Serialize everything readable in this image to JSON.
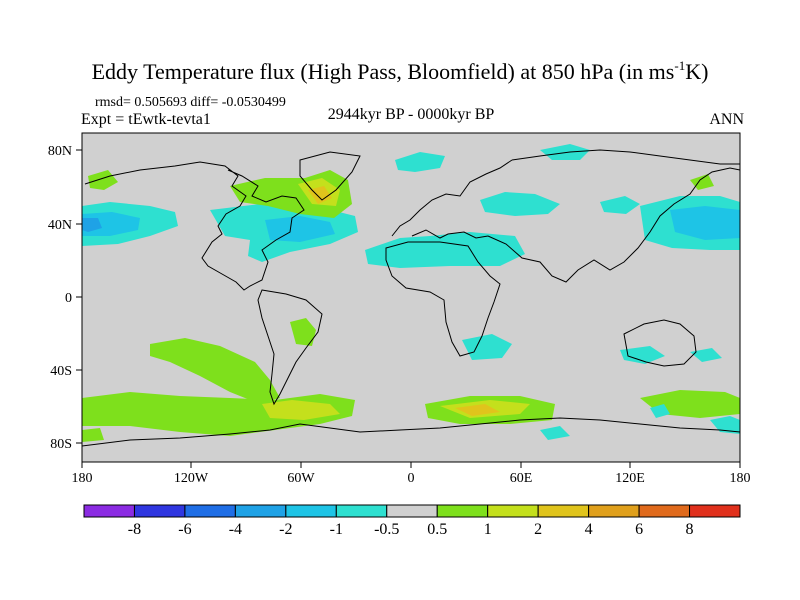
{
  "title": {
    "main": "Eddy Temperature flux (High Pass, Bloomfield) at 850 hPa (in ms",
    "sup": "-1",
    "unit_end": "K)"
  },
  "stats": "rmsd= 0.505693 diff= -0.0530499",
  "experiment": "Expt = tEwtk-tevta1",
  "period": "2944kyr BP - 0000kyr BP",
  "season": "ANN",
  "axes": {
    "lat_labels": [
      "80N",
      "40N",
      "0",
      "40S",
      "80S"
    ],
    "lon_labels": [
      "180",
      "120W",
      "60W",
      "0",
      "60E",
      "120E",
      "180"
    ]
  },
  "colorbar": {
    "colors": [
      "#8b2be2",
      "#2f36e0",
      "#1f6ee6",
      "#1fa2e6",
      "#1ec4e6",
      "#2ee0d0",
      "#d0d0d0",
      "#7ee01c",
      "#c4e01c",
      "#e0c41c",
      "#e0a01c",
      "#e06a1c",
      "#e0301c"
    ],
    "labels": [
      "-8",
      "-6",
      "-4",
      "-2",
      "-1",
      "-0.5",
      "0.5",
      "1",
      "2",
      "4",
      "6",
      "8"
    ]
  },
  "map_colors": {
    "ocean_bg": "#d0d0d0",
    "coast": "#000000"
  }
}
